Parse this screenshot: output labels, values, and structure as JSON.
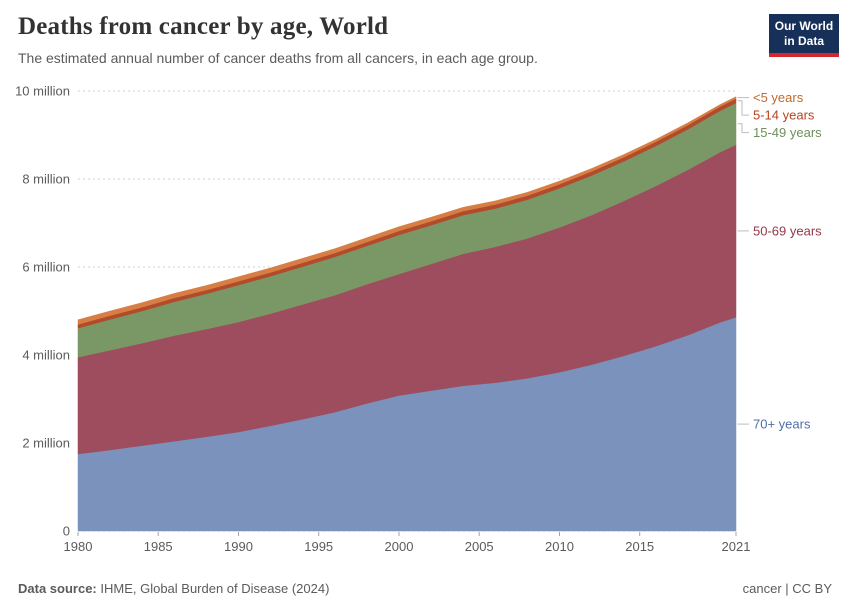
{
  "header": {
    "title": "Deaths from cancer by age, World",
    "subtitle": "The estimated annual number of cancer deaths from all cancers, in each age group.",
    "logo": {
      "line1": "Our World",
      "line2": "in Data",
      "bg": "#173059",
      "accent": "#d4262e"
    }
  },
  "footer": {
    "source_label": "Data source:",
    "source_text": " IHME, Global Burden of Disease (2024)",
    "license": "cancer | CC BY"
  },
  "chart_data": {
    "type": "area",
    "stacked": true,
    "title": "Deaths from cancer by age, World",
    "subtitle": "The estimated annual number of cancer deaths from all cancers, in each age group.",
    "unit": "million deaths per year",
    "grid": "horizontal-dashed",
    "legend_position": "right-edge-labels",
    "ylim": [
      0,
      10
    ],
    "x": [
      1980,
      1982,
      1984,
      1986,
      1988,
      1990,
      1992,
      1994,
      1996,
      1998,
      2000,
      2002,
      2004,
      2006,
      2008,
      2010,
      2012,
      2014,
      2016,
      2018,
      2020,
      2021
    ],
    "xticks": [
      1980,
      1985,
      1990,
      1995,
      2000,
      2005,
      2010,
      2015,
      2021
    ],
    "yticks": [
      {
        "value": 0,
        "label": "0"
      },
      {
        "value": 2,
        "label": "2 million"
      },
      {
        "value": 4,
        "label": "4 million"
      },
      {
        "value": 6,
        "label": "6 million"
      },
      {
        "value": 8,
        "label": "8 million"
      },
      {
        "value": 10,
        "label": "10 million"
      }
    ],
    "series": [
      {
        "name": "70+ years",
        "color": "#7b92bd",
        "label_color": "#4e6fa8",
        "values": [
          1.75,
          1.84,
          1.94,
          2.04,
          2.14,
          2.25,
          2.39,
          2.54,
          2.7,
          2.9,
          3.08,
          3.19,
          3.3,
          3.37,
          3.47,
          3.61,
          3.78,
          3.98,
          4.2,
          4.45,
          4.74,
          4.86
        ]
      },
      {
        "name": "50-69 years",
        "color": "#9d4d5d",
        "label_color": "#96374b",
        "values": [
          2.2,
          2.27,
          2.33,
          2.4,
          2.45,
          2.5,
          2.55,
          2.61,
          2.66,
          2.71,
          2.76,
          2.88,
          3.0,
          3.09,
          3.18,
          3.29,
          3.4,
          3.52,
          3.64,
          3.76,
          3.87,
          3.92
        ]
      },
      {
        "name": "15-49 years",
        "color": "#7a9866",
        "label_color": "#6e8f5b",
        "values": [
          0.66,
          0.7,
          0.73,
          0.77,
          0.8,
          0.84,
          0.85,
          0.86,
          0.87,
          0.87,
          0.89,
          0.88,
          0.88,
          0.87,
          0.88,
          0.89,
          0.9,
          0.9,
          0.91,
          0.92,
          0.94,
          0.95
        ]
      },
      {
        "name": "5-14 years",
        "color": "#b24a2c",
        "label_color": "#b5431f",
        "values": [
          0.085,
          0.086,
          0.086,
          0.087,
          0.087,
          0.087,
          0.088,
          0.088,
          0.089,
          0.089,
          0.09,
          0.09,
          0.091,
          0.091,
          0.092,
          0.092,
          0.093,
          0.094,
          0.095,
          0.096,
          0.097,
          0.098
        ]
      },
      {
        "name": "<5 years",
        "color": "#d67e44",
        "label_color": "#c06a2e",
        "values": [
          0.105,
          0.105,
          0.104,
          0.104,
          0.103,
          0.103,
          0.101,
          0.099,
          0.097,
          0.096,
          0.095,
          0.091,
          0.086,
          0.081,
          0.076,
          0.07,
          0.066,
          0.061,
          0.056,
          0.051,
          0.044,
          0.042
        ]
      }
    ]
  }
}
